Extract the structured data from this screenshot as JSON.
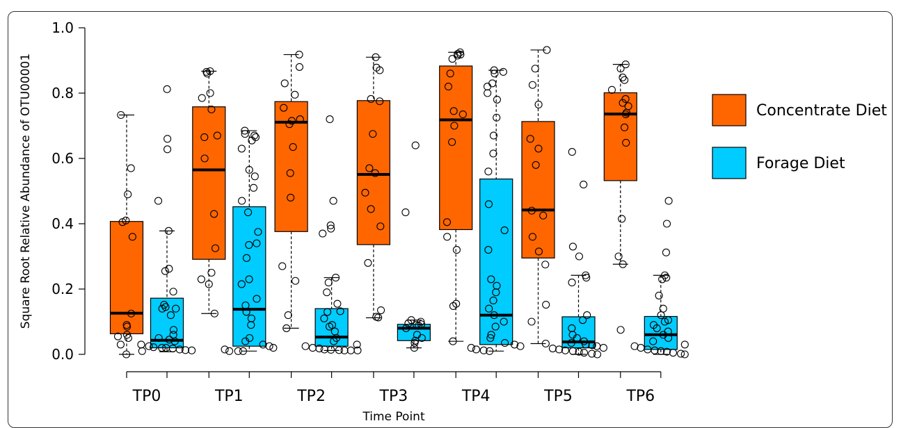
{
  "chart_data": {
    "type": "box",
    "xlabel": "Time Point",
    "ylabel": "Square Root Relative Abundance of OTU00001",
    "ylim": [
      0,
      1.0
    ],
    "yticks": [
      0.0,
      0.2,
      0.4,
      0.6,
      0.8,
      1.0
    ],
    "ytick_labels": [
      "0.0",
      "0.2",
      "0.4",
      "0.6",
      "0.8",
      "1.0"
    ],
    "categories": [
      "TP0",
      "TP1",
      "TP2",
      "TP3",
      "TP4",
      "TP5",
      "TP6"
    ],
    "legend_position": "right",
    "series": [
      {
        "name": "Concentrate Diet",
        "color": "#FF6600",
        "boxes": [
          {
            "min": 0.0,
            "q1": 0.063,
            "median": 0.126,
            "q3": 0.407,
            "max": 0.733
          },
          {
            "min": 0.125,
            "q1": 0.291,
            "median": 0.565,
            "q3": 0.758,
            "max": 0.867
          },
          {
            "min": 0.08,
            "q1": 0.376,
            "median": 0.711,
            "q3": 0.774,
            "max": 0.918
          },
          {
            "min": 0.112,
            "q1": 0.336,
            "median": 0.551,
            "q3": 0.777,
            "max": 0.91
          },
          {
            "min": 0.04,
            "q1": 0.382,
            "median": 0.718,
            "q3": 0.883,
            "max": 0.925
          },
          {
            "min": 0.033,
            "q1": 0.295,
            "median": 0.442,
            "q3": 0.713,
            "max": 0.932
          },
          {
            "min": 0.276,
            "q1": 0.532,
            "median": 0.736,
            "q3": 0.801,
            "max": 0.888
          }
        ],
        "points": [
          [
            0.733,
            0.57,
            0.49,
            0.41,
            0.405,
            0.36,
            0.125,
            0.09,
            0.085,
            0.06,
            0.055,
            0.05,
            0.03,
            0.0
          ],
          [
            0.867,
            0.865,
            0.86,
            0.8,
            0.785,
            0.75,
            0.67,
            0.665,
            0.6,
            0.43,
            0.325,
            0.25,
            0.23,
            0.215,
            0.125
          ],
          [
            0.918,
            0.88,
            0.83,
            0.795,
            0.755,
            0.72,
            0.715,
            0.705,
            0.635,
            0.555,
            0.48,
            0.27,
            0.225,
            0.12,
            0.08
          ],
          [
            0.91,
            0.878,
            0.87,
            0.782,
            0.775,
            0.675,
            0.57,
            0.555,
            0.495,
            0.445,
            0.392,
            0.28,
            0.135,
            0.115,
            0.113
          ],
          [
            0.925,
            0.92,
            0.918,
            0.915,
            0.905,
            0.86,
            0.82,
            0.745,
            0.735,
            0.7,
            0.65,
            0.405,
            0.36,
            0.32,
            0.155,
            0.148,
            0.04
          ],
          [
            0.932,
            0.875,
            0.825,
            0.765,
            0.66,
            0.63,
            0.58,
            0.44,
            0.425,
            0.36,
            0.315,
            0.275,
            0.152,
            0.1,
            0.033
          ],
          [
            0.888,
            0.875,
            0.848,
            0.84,
            0.81,
            0.782,
            0.77,
            0.76,
            0.74,
            0.735,
            0.695,
            0.648,
            0.415,
            0.3,
            0.276,
            0.075
          ]
        ]
      },
      {
        "name": "Forage Diet",
        "color": "#00CCFF",
        "boxes": [
          {
            "min": 0.008,
            "q1": 0.02,
            "median": 0.043,
            "q3": 0.172,
            "max": 0.378
          },
          {
            "min": 0.01,
            "q1": 0.025,
            "median": 0.138,
            "q3": 0.452,
            "max": 0.685
          },
          {
            "min": 0.012,
            "q1": 0.025,
            "median": 0.053,
            "q3": 0.14,
            "max": 0.235
          },
          {
            "min": 0.02,
            "q1": 0.042,
            "median": 0.08,
            "q3": 0.092,
            "max": 0.105
          },
          {
            "min": 0.01,
            "q1": 0.03,
            "median": 0.12,
            "q3": 0.537,
            "max": 0.87
          },
          {
            "min": 0.0,
            "q1": 0.02,
            "median": 0.038,
            "q3": 0.115,
            "max": 0.242
          },
          {
            "min": 0.0,
            "q1": 0.015,
            "median": 0.06,
            "q3": 0.116,
            "max": 0.242
          }
        ],
        "points": [
          [
            0.812,
            0.66,
            0.628,
            0.47,
            0.378,
            0.262,
            0.255,
            0.192,
            0.152,
            0.145,
            0.14,
            0.14,
            0.12,
            0.075,
            0.06,
            0.05,
            0.045,
            0.04,
            0.03,
            0.025,
            0.022,
            0.02,
            0.02,
            0.018,
            0.015,
            0.013,
            0.012,
            0.01
          ],
          [
            0.685,
            0.675,
            0.67,
            0.665,
            0.655,
            0.63,
            0.565,
            0.545,
            0.51,
            0.47,
            0.435,
            0.375,
            0.34,
            0.335,
            0.295,
            0.23,
            0.215,
            0.17,
            0.15,
            0.13,
            0.11,
            0.09,
            0.05,
            0.04,
            0.03,
            0.025,
            0.02,
            0.015,
            0.01,
            0.01,
            0.01
          ],
          [
            0.72,
            0.47,
            0.395,
            0.385,
            0.37,
            0.235,
            0.22,
            0.19,
            0.155,
            0.132,
            0.13,
            0.11,
            0.09,
            0.085,
            0.07,
            0.05,
            0.04,
            0.03,
            0.025,
            0.02,
            0.018,
            0.015,
            0.014,
            0.013,
            0.012,
            0.012,
            0.012
          ],
          [
            0.64,
            0.435,
            0.105,
            0.1,
            0.095,
            0.092,
            0.09,
            0.088,
            0.08,
            0.06,
            0.05,
            0.042,
            0.035,
            0.02
          ],
          [
            0.87,
            0.865,
            0.86,
            0.83,
            0.82,
            0.8,
            0.78,
            0.725,
            0.67,
            0.615,
            0.56,
            0.46,
            0.38,
            0.32,
            0.23,
            0.21,
            0.19,
            0.165,
            0.14,
            0.12,
            0.1,
            0.085,
            0.06,
            0.05,
            0.035,
            0.03,
            0.025,
            0.02,
            0.015,
            0.012,
            0.01
          ],
          [
            0.62,
            0.52,
            0.33,
            0.3,
            0.242,
            0.235,
            0.22,
            0.12,
            0.105,
            0.08,
            0.06,
            0.05,
            0.04,
            0.035,
            0.03,
            0.028,
            0.025,
            0.02,
            0.018,
            0.015,
            0.012,
            0.01,
            0.008,
            0.005,
            0.002,
            0.0
          ],
          [
            0.47,
            0.4,
            0.312,
            0.242,
            0.235,
            0.23,
            0.18,
            0.14,
            0.12,
            0.105,
            0.1,
            0.09,
            0.08,
            0.07,
            0.06,
            0.05,
            0.04,
            0.03,
            0.025,
            0.02,
            0.015,
            0.012,
            0.01,
            0.008,
            0.005,
            0.002,
            0.0
          ]
        ]
      }
    ]
  }
}
